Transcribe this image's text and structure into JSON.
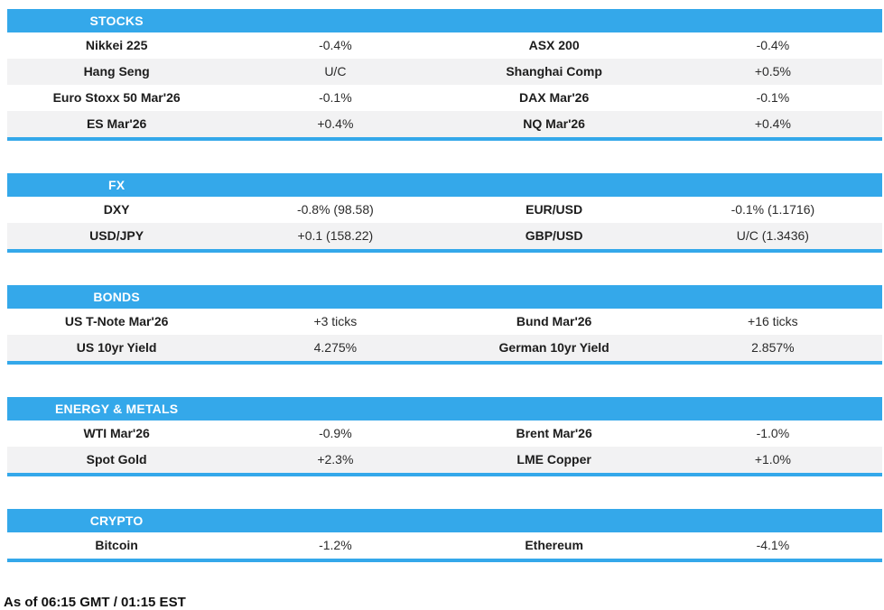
{
  "colors": {
    "accent_blue": "#34a8ea",
    "row_alt_bg": "#f2f2f3",
    "header_text": "#ffffff",
    "body_text": "#212121"
  },
  "chart_data": [
    {
      "type": "table",
      "title": "STOCKS",
      "columns": [
        "instrument",
        "change",
        "instrument",
        "change"
      ],
      "rows": [
        [
          "Nikkei 225",
          "-0.4%",
          "ASX 200",
          "-0.4%"
        ],
        [
          "Hang Seng",
          "U/C",
          "Shanghai Comp",
          "+0.5%"
        ],
        [
          "Euro Stoxx 50 Mar'26",
          "-0.1%",
          "DAX Mar'26",
          "-0.1%"
        ],
        [
          "ES Mar'26",
          "+0.4%",
          "NQ Mar'26",
          "+0.4%"
        ]
      ]
    },
    {
      "type": "table",
      "title": "FX",
      "columns": [
        "instrument",
        "change",
        "instrument",
        "change"
      ],
      "rows": [
        [
          "DXY",
          "-0.8% (98.58)",
          "EUR/USD",
          "-0.1% (1.1716)"
        ],
        [
          "USD/JPY",
          "+0.1 (158.22)",
          "GBP/USD",
          "U/C (1.3436)"
        ]
      ]
    },
    {
      "type": "table",
      "title": "BONDS",
      "columns": [
        "instrument",
        "change",
        "instrument",
        "change"
      ],
      "rows": [
        [
          "US T-Note Mar'26",
          "+3 ticks",
          "Bund Mar'26",
          "+16 ticks"
        ],
        [
          "US 10yr Yield",
          "4.275%",
          "German 10yr Yield",
          "2.857%"
        ]
      ]
    },
    {
      "type": "table",
      "title": "ENERGY & METALS",
      "columns": [
        "instrument",
        "change",
        "instrument",
        "change"
      ],
      "rows": [
        [
          "WTI Mar'26",
          "-0.9%",
          "Brent Mar'26",
          "-1.0%"
        ],
        [
          "Spot Gold",
          "+2.3%",
          "LME Copper",
          "+1.0%"
        ]
      ]
    },
    {
      "type": "table",
      "title": "CRYPTO",
      "columns": [
        "instrument",
        "change",
        "instrument",
        "change"
      ],
      "rows": [
        [
          "Bitcoin",
          "-1.2%",
          "Ethereum",
          "-4.1%"
        ]
      ]
    }
  ],
  "footer": {
    "as_of": "As of 06:15 GMT / 01:15 EST"
  }
}
